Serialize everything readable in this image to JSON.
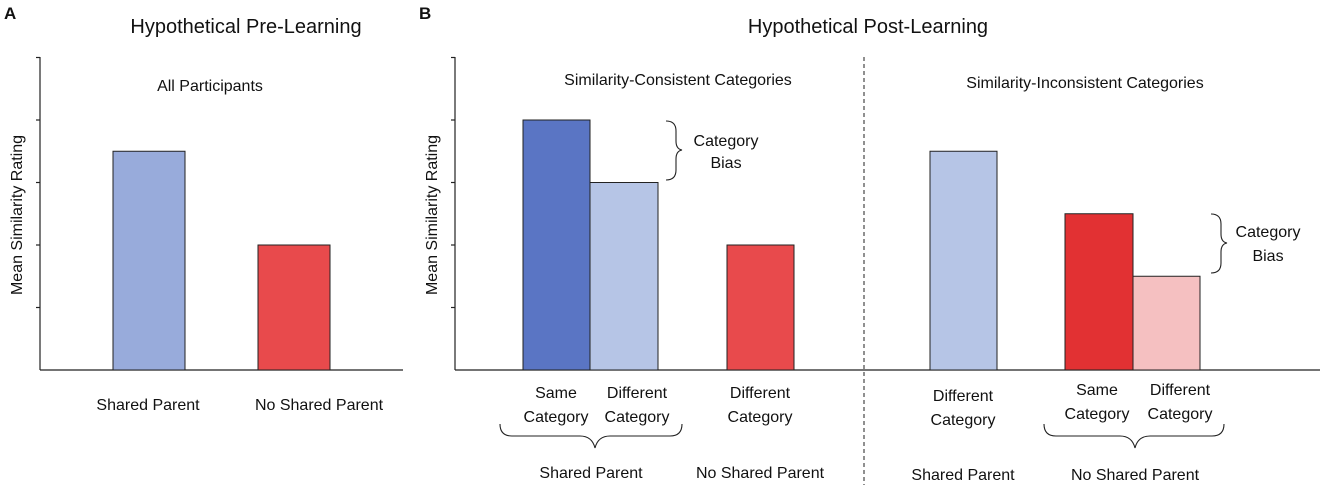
{
  "colors": {
    "blue_dark": "#5a75c4",
    "blue_light": "#b6c5e6",
    "blue_mid": "#98abdb",
    "red_dark": "#e23133",
    "red_mid": "#e84a4c",
    "red_light": "#f5c0c1"
  },
  "chart_data": [
    {
      "type": "bar",
      "panel": "A",
      "title": "Hypothetical Pre-Learning",
      "subtitle": "All Participants",
      "ylabel": "Mean Similarity Rating",
      "ylim": [
        0,
        5
      ],
      "bars": [
        {
          "value": 3.5,
          "labels": [
            "Shared Parent"
          ],
          "color": "blue_mid"
        },
        {
          "value": 2.0,
          "labels": [
            "No Shared Parent"
          ],
          "color": "red_mid"
        }
      ]
    },
    {
      "type": "bar",
      "panel": "B",
      "title": "Hypothetical Post-Learning",
      "ylabel": "Mean Similarity Rating",
      "ylim": [
        0,
        5
      ],
      "sections": [
        {
          "subtitle": "Similarity-Consistent Categories",
          "bars": [
            {
              "value": 4.0,
              "labels": [
                "Same",
                "Category"
              ],
              "color": "blue_dark"
            },
            {
              "value": 3.0,
              "labels": [
                "Different",
                "Category"
              ],
              "color": "blue_light"
            },
            {
              "value": 2.0,
              "labels": [
                "Different",
                "Category"
              ],
              "color": "red_mid"
            }
          ],
          "groups": [
            "Shared Parent",
            "No Shared Parent"
          ],
          "annotation": [
            "Category",
            "Bias"
          ]
        },
        {
          "subtitle": "Similarity-Inconsistent Categories",
          "bars": [
            {
              "value": 3.5,
              "labels": [
                "Different",
                "Category"
              ],
              "color": "blue_light"
            },
            {
              "value": 2.5,
              "labels": [
                "Same",
                "Category"
              ],
              "color": "red_dark"
            },
            {
              "value": 1.5,
              "labels": [
                "Different",
                "Category"
              ],
              "color": "red_light"
            }
          ],
          "groups": [
            "Shared Parent",
            "No Shared Parent"
          ],
          "annotation": [
            "Category",
            "Bias"
          ]
        }
      ]
    }
  ]
}
